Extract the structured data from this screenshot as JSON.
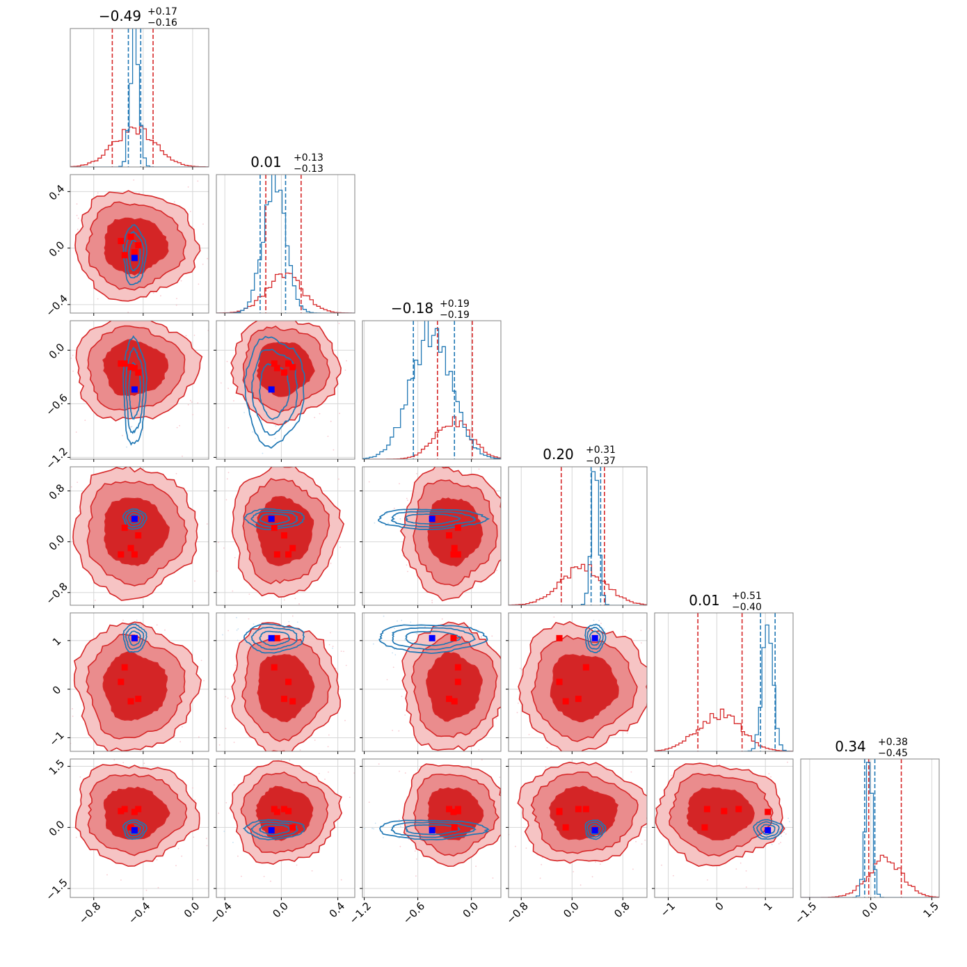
{
  "chart_data": {
    "type": "scatter",
    "kind": "corner-plot",
    "n_params": 6,
    "grid": true,
    "colors": {
      "red": "#d62728",
      "blue": "#1f77b4",
      "red_fill_outer": "#f6c4c4",
      "red_fill_mid": "#ea8c8d",
      "red_fill_inner": "#d42526",
      "marker_blue": "#0000ff",
      "marker_red": "#ff0000",
      "grid": "#d6d6d6"
    },
    "params": [
      {
        "title_main": "−0.49",
        "title_up": "+0.17",
        "title_lo": "−0.16",
        "range": [
          -0.99,
          0.13
        ],
        "x_ticks": [
          -0.8,
          -0.4,
          0.0
        ],
        "x_tick_labels": [
          "−0.8",
          "−0.4",
          "0.0"
        ],
        "y_ticks": [],
        "y_tick_labels": [],
        "red": {
          "center": -0.47,
          "sd": 0.17,
          "q": [
            -0.65,
            -0.32
          ]
        },
        "blue": {
          "center": -0.47,
          "sd": 0.035,
          "q": [
            -0.52,
            -0.42
          ]
        }
      },
      {
        "title_main": "0.01",
        "title_up": "+0.13",
        "title_lo": "−0.13",
        "range": [
          -0.46,
          0.52
        ],
        "x_ticks": [
          -0.4,
          0.0,
          0.4
        ],
        "x_tick_labels": [
          "−0.4",
          "0.0",
          "0.4"
        ],
        "y_ticks": [
          0.4,
          0.0,
          -0.4
        ],
        "y_tick_labels": [
          "0.4",
          "0.0",
          "−0.4"
        ],
        "red": {
          "center": 0.02,
          "sd": 0.13,
          "q": [
            -0.11,
            0.14
          ]
        },
        "blue": {
          "center": -0.05,
          "sd": 0.08,
          "q": [
            -0.15,
            0.03
          ]
        }
      },
      {
        "title_main": "−0.18",
        "title_up": "+0.19",
        "title_lo": "−0.19",
        "range": [
          -1.22,
          0.33
        ],
        "x_ticks": [
          -1.2,
          -0.6,
          0.0
        ],
        "x_tick_labels": [
          "−1.2",
          "−0.6",
          "0.0"
        ],
        "y_ticks": [
          0.0,
          -0.6,
          -1.2
        ],
        "y_tick_labels": [
          "0.0",
          "−0.6",
          "−1.2"
        ],
        "red": {
          "center": -0.2,
          "sd": 0.2,
          "q": [
            -0.38,
            0.01
          ]
        },
        "blue": {
          "center": -0.45,
          "sd": 0.23,
          "q": [
            -0.65,
            -0.19
          ]
        }
      },
      {
        "title_main": "0.20",
        "title_up": "+0.31",
        "title_lo": "−0.37",
        "range": [
          -1.0,
          1.18
        ],
        "x_ticks": [
          -0.8,
          0.0,
          0.8
        ],
        "x_tick_labels": [
          "−0.8",
          "0.0",
          "0.8"
        ],
        "y_ticks": [
          0.8,
          0.0,
          -0.8
        ],
        "y_tick_labels": [
          "0.8",
          "0.0",
          "−0.8"
        ],
        "red": {
          "center": 0.17,
          "sd": 0.35,
          "q": [
            -0.17,
            0.51
          ]
        },
        "blue": {
          "center": 0.36,
          "sd": 0.06,
          "q": [
            0.3,
            0.45
          ]
        }
      },
      {
        "title_main": "0.01",
        "title_up": "+0.51",
        "title_lo": "−0.40",
        "range": [
          -1.28,
          1.57
        ],
        "x_ticks": [
          -1,
          0,
          1
        ],
        "x_tick_labels": [
          "−1",
          "0",
          "1"
        ],
        "y_ticks": [
          1,
          0,
          -1
        ],
        "y_tick_labels": [
          "1",
          "0",
          "−1"
        ],
        "red": {
          "center": 0.05,
          "sd": 0.45,
          "q": [
            -0.39,
            0.52
          ]
        },
        "blue": {
          "center": 1.05,
          "sd": 0.11,
          "q": [
            0.9,
            1.2
          ]
        }
      },
      {
        "title_main": "0.34",
        "title_up": "+0.38",
        "title_lo": "−0.45",
        "range": [
          -1.72,
          1.68
        ],
        "x_ticks": [
          -1.5,
          0.0,
          1.5
        ],
        "x_tick_labels": [
          "−1.5",
          "0.0",
          "1.5"
        ],
        "y_ticks": [
          1.5,
          0.0,
          -1.5
        ],
        "y_tick_labels": [
          "1.5",
          "0.0",
          "−1.5"
        ],
        "red": {
          "center": 0.35,
          "sd": 0.42,
          "q": [
            -0.05,
            0.75
          ]
        },
        "blue": {
          "center": -0.05,
          "sd": 0.09,
          "q": [
            -0.15,
            0.1
          ]
        }
      }
    ],
    "markers": {
      "blue_point": [
        -0.47,
        -0.07,
        -0.44,
        0.36,
        1.05,
        -0.07
      ],
      "red_points": [
        [
          -0.58,
          0.05,
          -0.15,
          -0.2,
          0.15,
          0.4
        ],
        [
          -0.55,
          -0.05,
          -0.15,
          0.22,
          0.45,
          0.45
        ],
        [
          -0.5,
          0.08,
          -0.19,
          -0.1,
          -0.25,
          0.0
        ],
        [
          -0.44,
          0.02,
          -0.25,
          0.1,
          -0.2,
          0.45
        ],
        [
          -0.47,
          -0.03,
          -0.2,
          -0.2,
          1.05,
          0.38
        ]
      ]
    }
  }
}
